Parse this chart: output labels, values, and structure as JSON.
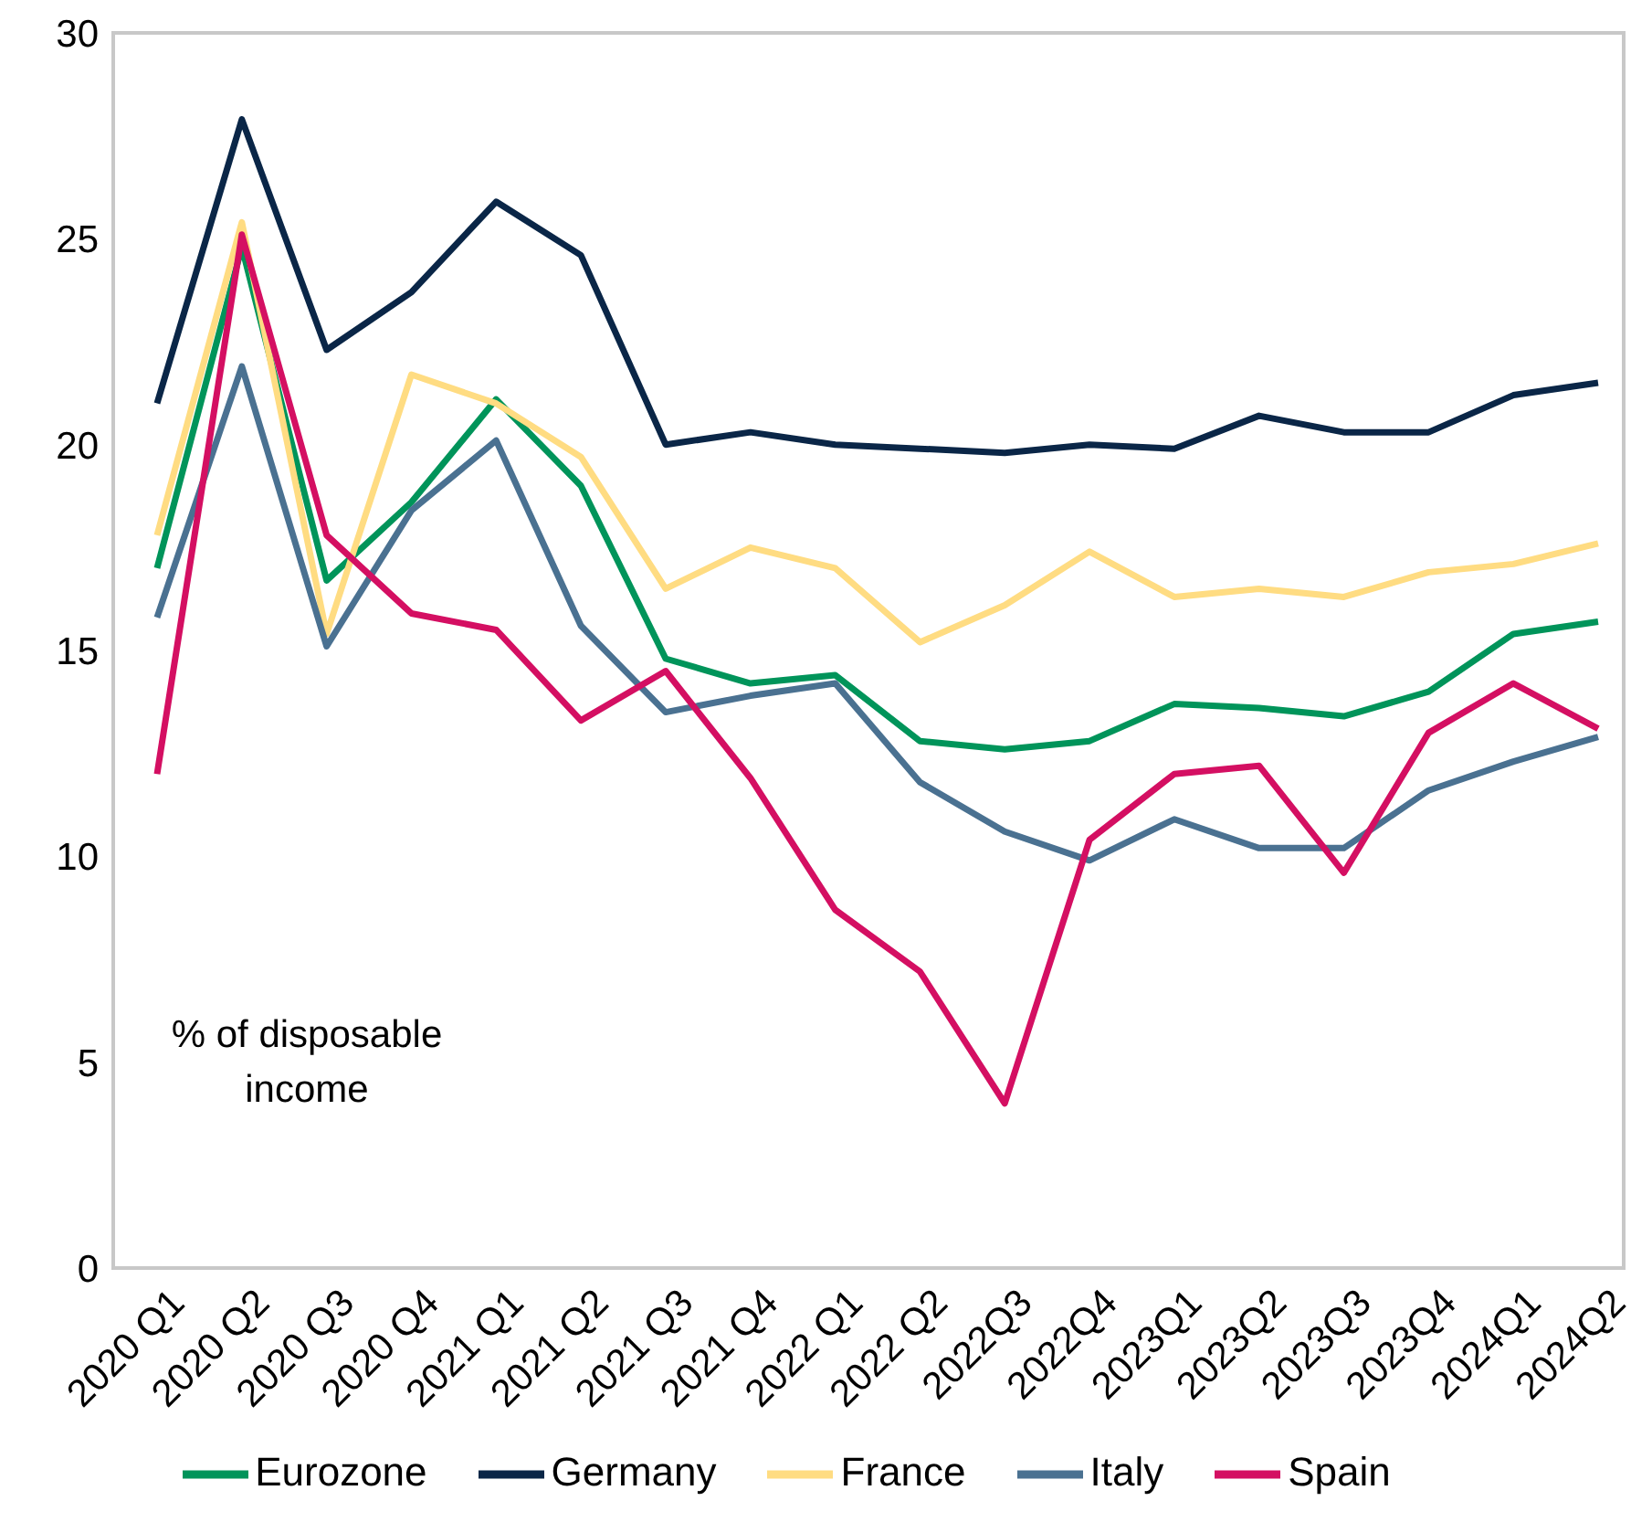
{
  "chart_data": {
    "type": "line",
    "categories": [
      "2020 Q1",
      "2020 Q2",
      "2020 Q3",
      "2020 Q4",
      "2021 Q1",
      "2021 Q2",
      "2021 Q3",
      "2021 Q4",
      "2022 Q1",
      "2022 Q2",
      "2022Q3",
      "2022Q4",
      "2023Q1",
      "2023Q2",
      "2023Q3",
      "2023Q4",
      "2024Q1",
      "2024Q2"
    ],
    "series": [
      {
        "name": "Eurozone",
        "color": "#00945a",
        "values": [
          17.0,
          24.8,
          16.7,
          18.6,
          21.1,
          19.0,
          14.8,
          14.2,
          14.4,
          12.8,
          12.6,
          12.8,
          13.7,
          13.6,
          13.4,
          14.0,
          15.4,
          15.7
        ]
      },
      {
        "name": "Germany",
        "color": "#0a2647",
        "values": [
          21.0,
          27.9,
          22.3,
          23.7,
          25.9,
          24.6,
          20.0,
          20.3,
          20.0,
          19.9,
          19.8,
          20.0,
          19.9,
          20.7,
          20.3,
          20.3,
          21.2,
          21.5
        ]
      },
      {
        "name": "France",
        "color": "#ffdc82",
        "values": [
          17.8,
          25.4,
          15.4,
          21.7,
          21.0,
          19.7,
          16.5,
          17.5,
          17.0,
          15.2,
          16.1,
          17.4,
          16.3,
          16.5,
          16.3,
          16.9,
          17.1,
          17.6
        ]
      },
      {
        "name": "Italy",
        "color": "#4a7191",
        "values": [
          15.8,
          21.9,
          15.1,
          18.4,
          20.1,
          15.6,
          13.5,
          13.9,
          14.2,
          11.8,
          10.6,
          9.9,
          10.9,
          10.2,
          10.2,
          11.6,
          12.3,
          12.9
        ]
      },
      {
        "name": "Spain",
        "color": "#d40f62",
        "values": [
          12.0,
          25.1,
          17.8,
          15.9,
          15.5,
          13.3,
          14.5,
          11.9,
          8.7,
          7.2,
          4.0,
          10.4,
          12.0,
          12.2,
          9.6,
          13.0,
          14.2,
          13.1
        ]
      }
    ],
    "ylim": [
      0,
      30
    ],
    "yticks": [
      0,
      5,
      10,
      15,
      20,
      25,
      30
    ],
    "grid": false,
    "legend": "bottom",
    "marker": "none",
    "line_style": "solid",
    "annotations": [
      "% of disposable income"
    ]
  }
}
